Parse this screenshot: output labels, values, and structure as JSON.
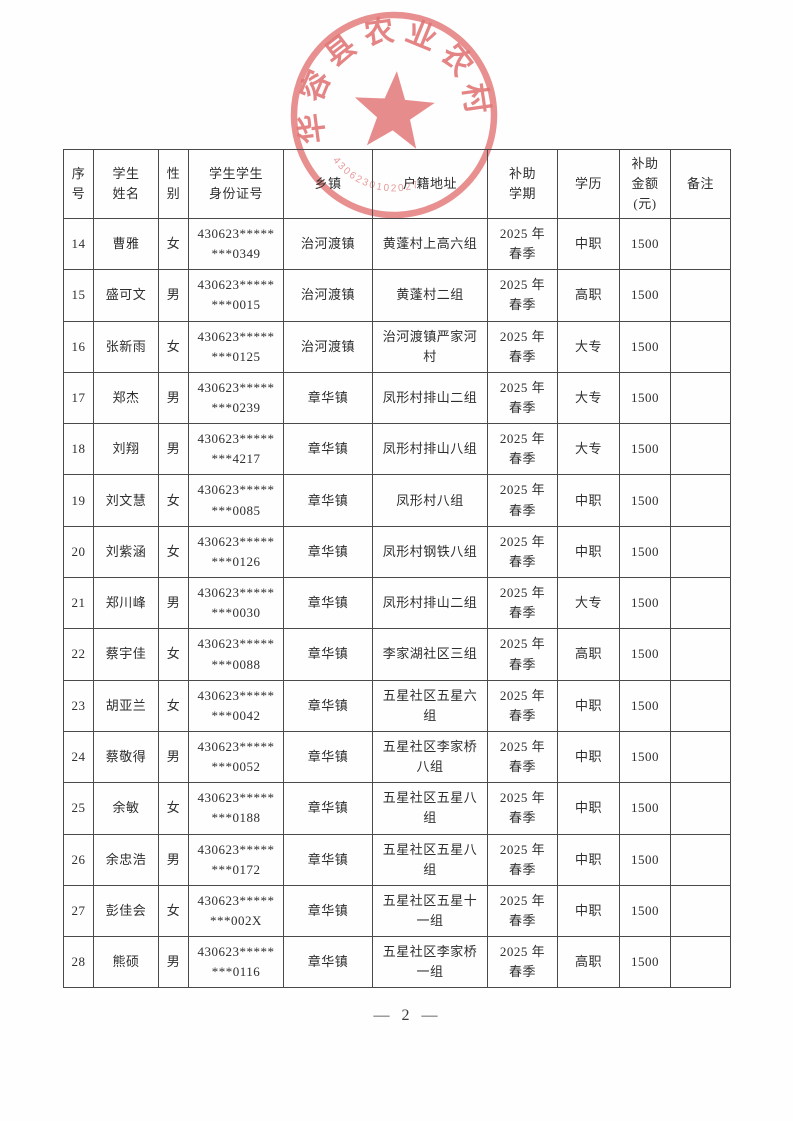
{
  "stamp": {
    "arc_text": "华容县农业农村局",
    "code": "4306230102027",
    "color": "#e06565"
  },
  "table": {
    "headers": [
      "序\n号",
      "学生\n姓名",
      "性\n别",
      "学生学生\n身份证号",
      "乡镇",
      "户籍地址",
      "补助\n学期",
      "学历",
      "补助\n金额\n(元)",
      "备注"
    ],
    "rows": [
      [
        "14",
        "曹雅",
        "女",
        "430623*****\n***0349",
        "治河渡镇",
        "黄蓬村上高六组",
        "2025 年\n春季",
        "中职",
        "1500",
        ""
      ],
      [
        "15",
        "盛可文",
        "男",
        "430623*****\n***0015",
        "治河渡镇",
        "黄蓬村二组",
        "2025 年\n春季",
        "高职",
        "1500",
        ""
      ],
      [
        "16",
        "张新雨",
        "女",
        "430623*****\n***0125",
        "治河渡镇",
        "治河渡镇严家河\n村",
        "2025 年\n春季",
        "大专",
        "1500",
        ""
      ],
      [
        "17",
        "郑杰",
        "男",
        "430623*****\n***0239",
        "章华镇",
        "凤形村排山二组",
        "2025 年\n春季",
        "大专",
        "1500",
        ""
      ],
      [
        "18",
        "刘翔",
        "男",
        "430623*****\n***4217",
        "章华镇",
        "凤形村排山八组",
        "2025 年\n春季",
        "大专",
        "1500",
        ""
      ],
      [
        "19",
        "刘文慧",
        "女",
        "430623*****\n***0085",
        "章华镇",
        "凤形村八组",
        "2025 年\n春季",
        "中职",
        "1500",
        ""
      ],
      [
        "20",
        "刘紫涵",
        "女",
        "430623*****\n***0126",
        "章华镇",
        "凤形村钢铁八组",
        "2025 年\n春季",
        "中职",
        "1500",
        ""
      ],
      [
        "21",
        "郑川峰",
        "男",
        "430623*****\n***0030",
        "章华镇",
        "凤形村排山二组",
        "2025 年\n春季",
        "大专",
        "1500",
        ""
      ],
      [
        "22",
        "蔡宇佳",
        "女",
        "430623*****\n***0088",
        "章华镇",
        "李家湖社区三组",
        "2025 年\n春季",
        "高职",
        "1500",
        ""
      ],
      [
        "23",
        "胡亚兰",
        "女",
        "430623*****\n***0042",
        "章华镇",
        "五星社区五星六\n组",
        "2025 年\n春季",
        "中职",
        "1500",
        ""
      ],
      [
        "24",
        "蔡敬得",
        "男",
        "430623*****\n***0052",
        "章华镇",
        "五星社区李家桥\n八组",
        "2025 年\n春季",
        "中职",
        "1500",
        ""
      ],
      [
        "25",
        "余敏",
        "女",
        "430623*****\n***0188",
        "章华镇",
        "五星社区五星八\n组",
        "2025 年\n春季",
        "中职",
        "1500",
        ""
      ],
      [
        "26",
        "余忠浩",
        "男",
        "430623*****\n***0172",
        "章华镇",
        "五星社区五星八\n组",
        "2025 年\n春季",
        "中职",
        "1500",
        ""
      ],
      [
        "27",
        "彭佳会",
        "女",
        "430623*****\n***002X",
        "章华镇",
        "五星社区五星十\n一组",
        "2025 年\n春季",
        "中职",
        "1500",
        ""
      ],
      [
        "28",
        "熊硕",
        "男",
        "430623*****\n***0116",
        "章华镇",
        "五星社区李家桥\n一组",
        "2025 年\n春季",
        "高职",
        "1500",
        ""
      ]
    ]
  },
  "footer": {
    "page_number": "— 2 —"
  }
}
